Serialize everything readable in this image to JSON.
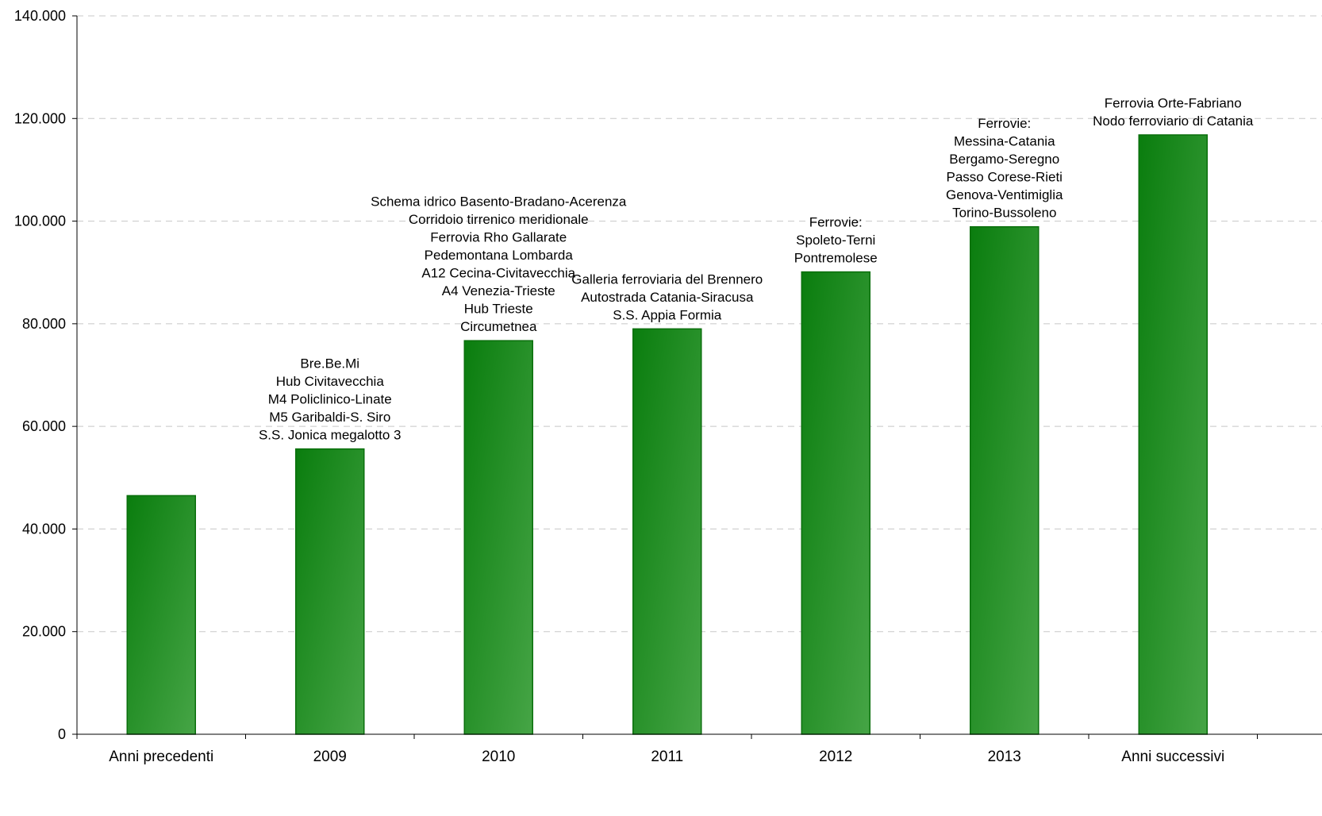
{
  "chart_data": {
    "type": "bar",
    "title": "",
    "xlabel": "",
    "ylabel": "",
    "ylim": [
      0,
      140000
    ],
    "grid": true,
    "legend": "none",
    "y_ticks": [
      "0",
      "20.000",
      "40.000",
      "60.000",
      "80.000",
      "100.000",
      "120.000",
      "140.000"
    ],
    "categories": [
      "Anni precedenti",
      "2009",
      "2010",
      "2011",
      "2012",
      "2013",
      "Anni successivi"
    ],
    "values": [
      46500,
      55600,
      76700,
      79000,
      90100,
      98900,
      116800
    ],
    "annotations": [
      [],
      [
        "Bre.Be.Mi",
        "Hub Civitavecchia",
        "M4 Policlinico-Linate",
        "M5 Garibaldi-S. Siro",
        "S.S. Jonica megalotto 3"
      ],
      [
        "Schema idrico Basento-Bradano-Acerenza",
        "Corridoio tirrenico meridionale",
        "Ferrovia Rho Gallarate",
        "Pedemontana Lombarda",
        "A12 Cecina-Civitavecchia",
        "A4 Venezia-Trieste",
        "Hub Trieste",
        "Circumetnea"
      ],
      [
        "Galleria ferroviaria del Brennero",
        "Autostrada Catania-Siracusa",
        "S.S. Appia Formia"
      ],
      [
        "Ferrovie:",
        "Spoleto-Terni",
        "Pontremolese"
      ],
      [
        "Ferrovie:",
        "Messina-Catania",
        "Bergamo-Seregno",
        "Passo Corese-Rieti",
        "Genova-Ventimiglia",
        "Torino-Bussoleno"
      ],
      [
        "Ferrovia Orte-Fabriano",
        "Nodo ferroviario di Catania"
      ]
    ],
    "colors": {
      "bar_dark": "#0a7d0e",
      "bar_light": "#46a546",
      "bar_stroke": "#0a6f0c",
      "grid": "#c8c8c8",
      "axis": "#000000"
    }
  }
}
